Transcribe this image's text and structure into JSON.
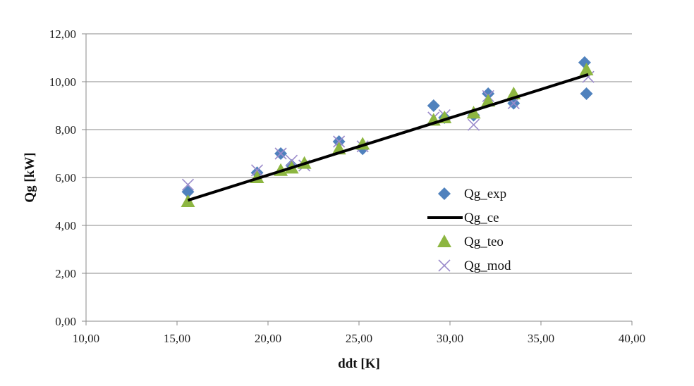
{
  "chart_data": {
    "type": "scatter",
    "xlabel": "ddt [K]",
    "ylabel": "Qg [kW]",
    "xlim": [
      10,
      40
    ],
    "ylim": [
      0,
      12
    ],
    "x_ticks": [
      "10,00",
      "15,00",
      "20,00",
      "25,00",
      "30,00",
      "35,00",
      "40,00"
    ],
    "y_ticks": [
      "0,00",
      "2,00",
      "4,00",
      "6,00",
      "8,00",
      "10,00",
      "12,00"
    ],
    "grid": "horizontal",
    "legend_position": "right",
    "series": [
      {
        "name": "Qg_exp",
        "marker": "diamond",
        "color": "#4F81BD",
        "points": [
          [
            15.6,
            5.4
          ],
          [
            19.4,
            6.2
          ],
          [
            20.7,
            7.0
          ],
          [
            21.3,
            6.5
          ],
          [
            23.9,
            7.5
          ],
          [
            25.2,
            7.2
          ],
          [
            29.1,
            9.0
          ],
          [
            29.7,
            8.5
          ],
          [
            31.3,
            8.6
          ],
          [
            32.1,
            9.5
          ],
          [
            33.5,
            9.1
          ],
          [
            37.4,
            10.8
          ],
          [
            37.5,
            9.5
          ]
        ]
      },
      {
        "name": "Qg_ce",
        "marker": "line",
        "color": "#000000",
        "points": [
          [
            15.6,
            5.05
          ],
          [
            37.6,
            10.3
          ]
        ]
      },
      {
        "name": "Qg_teo",
        "marker": "triangle",
        "color": "#8DB641",
        "points": [
          [
            15.6,
            5.0
          ],
          [
            19.4,
            6.0
          ],
          [
            20.7,
            6.3
          ],
          [
            21.3,
            6.4
          ],
          [
            22.0,
            6.6
          ],
          [
            23.9,
            7.2
          ],
          [
            25.2,
            7.4
          ],
          [
            29.1,
            8.4
          ],
          [
            29.7,
            8.5
          ],
          [
            31.3,
            8.7
          ],
          [
            32.1,
            9.2
          ],
          [
            33.5,
            9.5
          ],
          [
            37.5,
            10.5
          ]
        ]
      },
      {
        "name": "Qg_mod",
        "marker": "x",
        "color": "#9B8BCB",
        "points": [
          [
            15.6,
            5.7
          ],
          [
            19.4,
            6.3
          ],
          [
            20.7,
            7.0
          ],
          [
            21.3,
            6.7
          ],
          [
            22.0,
            6.5
          ],
          [
            23.9,
            7.5
          ],
          [
            25.2,
            7.3
          ],
          [
            29.1,
            8.5
          ],
          [
            29.7,
            8.6
          ],
          [
            31.3,
            8.2
          ],
          [
            32.1,
            9.4
          ],
          [
            33.5,
            9.1
          ],
          [
            37.6,
            10.2
          ]
        ]
      }
    ]
  }
}
